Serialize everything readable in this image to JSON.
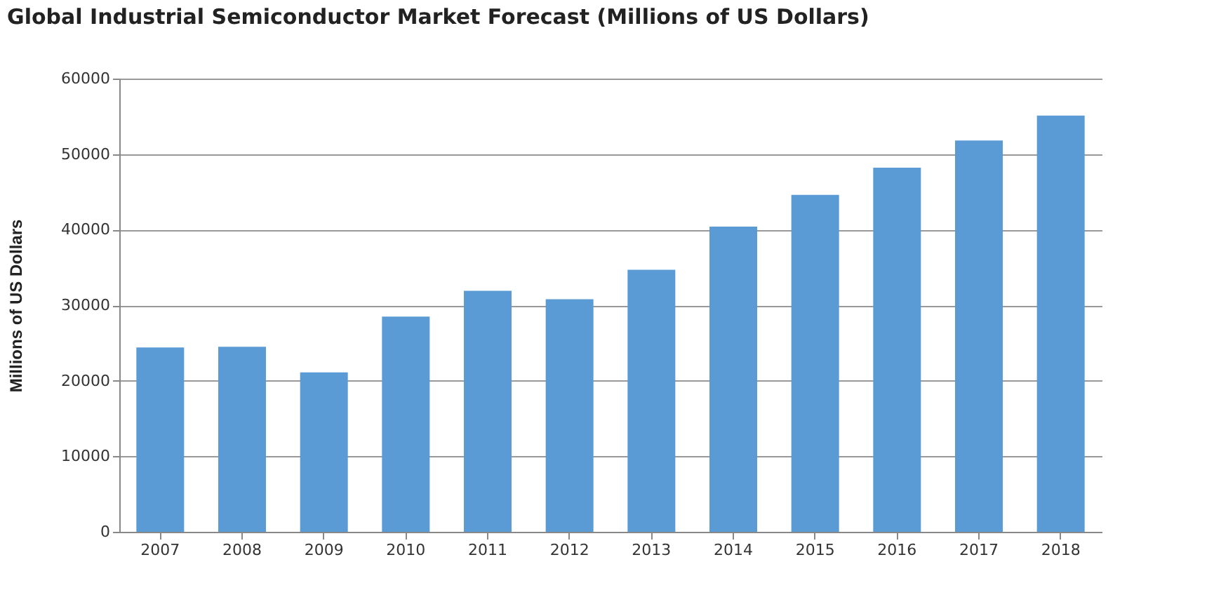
{
  "chart_data": {
    "type": "bar",
    "title": "Global Industrial Semiconductor Market Forecast (Millions of US Dollars)",
    "ylabel": "Millions of US Dollars",
    "categories": [
      "2007",
      "2008",
      "2009",
      "2010",
      "2011",
      "2012",
      "2013",
      "2014",
      "2015",
      "2016",
      "2017",
      "2018"
    ],
    "values": [
      24400,
      24500,
      21100,
      28500,
      31900,
      30800,
      34700,
      40400,
      44600,
      48200,
      51800,
      55100
    ],
    "color": "#5b9bd5",
    "ylim": [
      0,
      60000
    ],
    "yticks": [
      0,
      10000,
      20000,
      30000,
      40000,
      50000,
      60000
    ],
    "grid": "y"
  }
}
